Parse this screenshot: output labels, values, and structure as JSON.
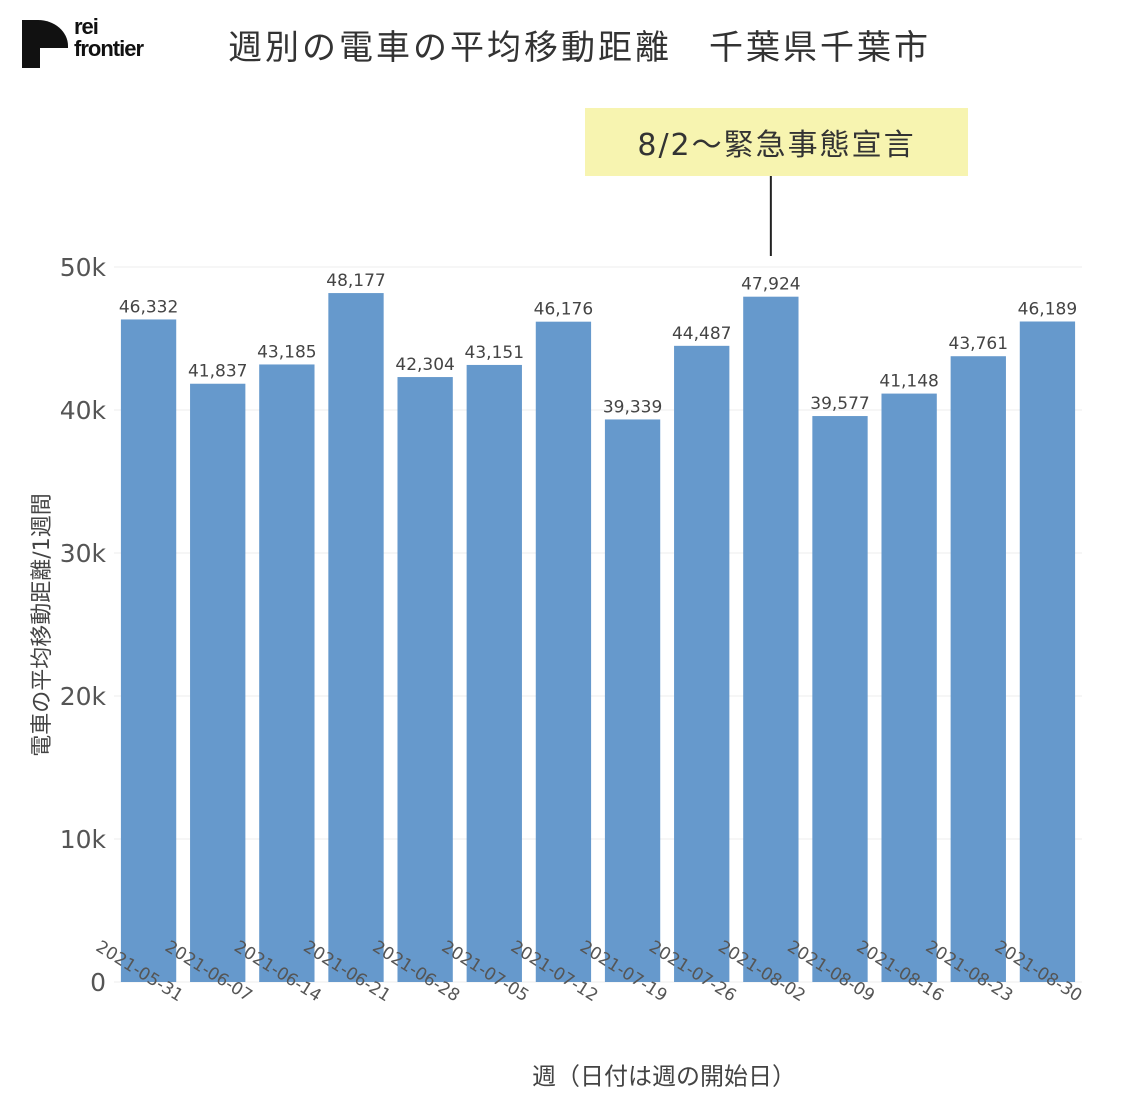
{
  "logo": {
    "line1": "rei",
    "line2": "frontier"
  },
  "title": "週別の電車の平均移動距離　千葉県千葉市",
  "annotation": {
    "label": "8/2～緊急事態宣言",
    "category": "2021-08-02"
  },
  "colors": {
    "bar": "#6699cc",
    "grid": "#ececec",
    "annotation_bg": "#f7f4b0",
    "axis_text": "#555555",
    "value_label": "#444444"
  },
  "chart_data": {
    "type": "bar",
    "categories": [
      "2021-05-31",
      "2021-06-07",
      "2021-06-14",
      "2021-06-21",
      "2021-06-28",
      "2021-07-05",
      "2021-07-12",
      "2021-07-19",
      "2021-07-26",
      "2021-08-02",
      "2021-08-09",
      "2021-08-16",
      "2021-08-23",
      "2021-08-30"
    ],
    "values": [
      46332,
      41837,
      43185,
      48177,
      42304,
      43151,
      46176,
      39339,
      44487,
      47924,
      39577,
      41148,
      43761,
      46189
    ],
    "value_labels": [
      "46,332",
      "41,837",
      "43,185",
      "48,177",
      "42,304",
      "43,151",
      "46,176",
      "39,339",
      "44,487",
      "47,924",
      "39,577",
      "41,148",
      "43,761",
      "46,189"
    ],
    "xlabel": "週（日付は週の開始日）",
    "ylabel": "電車の平均移動距離/1週間",
    "ylim": [
      0,
      50000
    ],
    "yticks": [
      0,
      10000,
      20000,
      30000,
      40000,
      50000
    ],
    "ytick_labels": [
      "0",
      "10k",
      "20k",
      "30k",
      "40k",
      "50k"
    ],
    "grid": true,
    "legend": "none"
  }
}
